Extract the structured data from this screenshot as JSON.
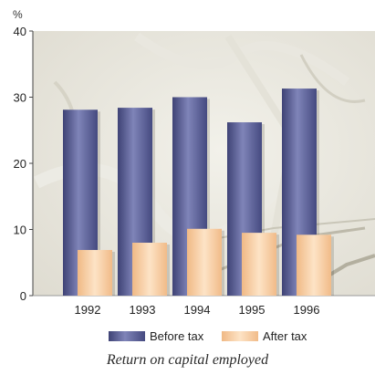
{
  "caption": "Return on capital employed",
  "chart_data": {
    "type": "bar",
    "title": "Return on capital employed",
    "ylabel": "%",
    "xlabel": "",
    "ylim": [
      0,
      40
    ],
    "yticks": [
      0,
      10,
      20,
      30,
      40
    ],
    "grid": false,
    "legend": "bottom",
    "categories": [
      "1992",
      "1993",
      "1994",
      "1995",
      "1996"
    ],
    "series": [
      {
        "name": "Before tax",
        "values": [
          28.1,
          28.4,
          30.0,
          26.2,
          31.3
        ],
        "color": "#5a5f94"
      },
      {
        "name": "After tax",
        "values": [
          6.9,
          8.0,
          10.1,
          9.5,
          9.2
        ],
        "color": "#f6c79a"
      }
    ]
  }
}
